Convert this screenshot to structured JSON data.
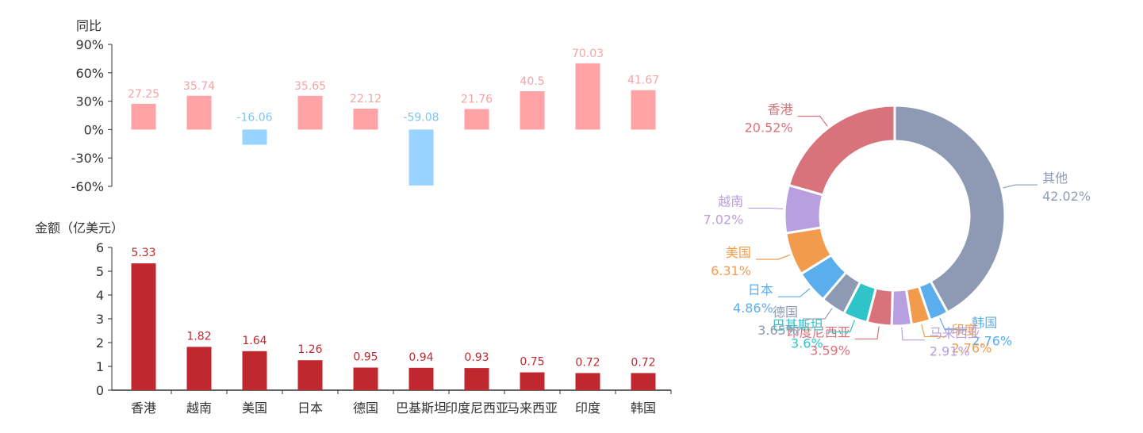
{
  "chart_data": [
    {
      "type": "bar",
      "ylabel": "同比",
      "categories": [
        "香港",
        "越南",
        "美国",
        "日本",
        "德国",
        "巴基斯坦",
        "印度尼西亚",
        "马来西亚",
        "印度",
        "韩国"
      ],
      "values": [
        27.25,
        35.74,
        -16.06,
        35.65,
        22.12,
        -59.08,
        21.76,
        40.5,
        70.03,
        41.67
      ],
      "ylim": [
        -60,
        90
      ],
      "yticks": [
        "90%",
        "60%",
        "30%",
        "0%",
        "-30%",
        "-60%"
      ],
      "colors": {
        "positive": "#ffa3a6",
        "negative": "#99d3ff",
        "positive_label": "#f4a3a6",
        "negative_label": "#7fc4f5"
      }
    },
    {
      "type": "bar",
      "ylabel": "金额（亿美元）",
      "categories": [
        "香港",
        "越南",
        "美国",
        "日本",
        "德国",
        "巴基斯坦",
        "印度尼西亚",
        "马来西亚",
        "印度",
        "韩国"
      ],
      "values": [
        5.33,
        1.82,
        1.64,
        1.26,
        0.95,
        0.94,
        0.93,
        0.75,
        0.72,
        0.72
      ],
      "ylim": [
        0,
        6
      ],
      "yticks": [
        "6",
        "5",
        "4",
        "3",
        "2",
        "1",
        "0"
      ],
      "colors": {
        "bar": "#c0282f",
        "label": "#c0282f"
      }
    },
    {
      "type": "pie",
      "slices": [
        {
          "name": "其他",
          "value": 42.02,
          "label": "42.02%",
          "color": "#8e9ab3"
        },
        {
          "name": "韩国",
          "value": 2.76,
          "label": "2.76%",
          "color": "#5aaeeb"
        },
        {
          "name": "印度",
          "value": 2.76,
          "label": "2.76%",
          "color": "#f39b4c"
        },
        {
          "name": "马来西亚",
          "value": 2.91,
          "label": "2.91%",
          "color": "#b8a0e0"
        },
        {
          "name": "印度尼西亚",
          "value": 3.59,
          "label": "3.59%",
          "color": "#d9737b"
        },
        {
          "name": "巴基斯坦",
          "value": 3.6,
          "label": "3.6%",
          "color": "#2ec4c8"
        },
        {
          "name": "德国",
          "value": 3.65,
          "label": "3.65%",
          "color": "#8e9ab3"
        },
        {
          "name": "日本",
          "value": 4.86,
          "label": "4.86%",
          "color": "#5aaeeb"
        },
        {
          "name": "美国",
          "value": 6.31,
          "label": "6.31%",
          "color": "#f39b4c"
        },
        {
          "name": "越南",
          "value": 7.02,
          "label": "7.02%",
          "color": "#b8a0e0"
        },
        {
          "name": "香港",
          "value": 20.52,
          "label": "20.52%",
          "color": "#d9737b"
        }
      ]
    }
  ]
}
